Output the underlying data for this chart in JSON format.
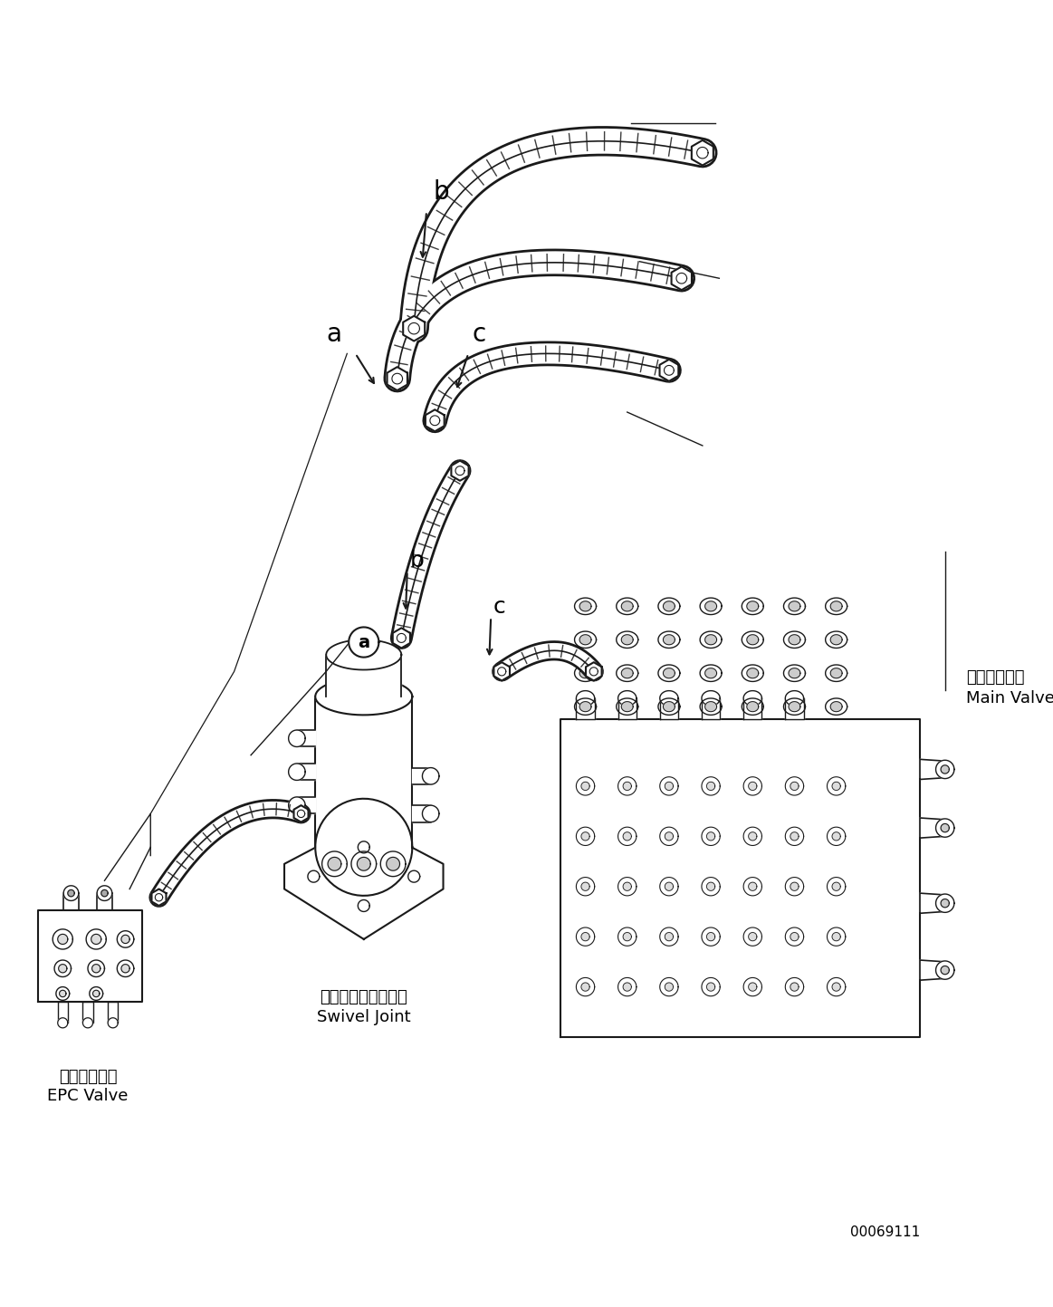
{
  "title": "",
  "background_color": "#ffffff",
  "line_color": "#1a1a1a",
  "text_color": "#000000",
  "labels": {
    "epc_valve_jp": "ＥＰＣバルブ",
    "epc_valve_en": "EPC Valve",
    "swivel_joint_jp": "スイベルジョイント",
    "swivel_joint_en": "Swivel Joint",
    "main_valve_jp": "メインバルブ",
    "main_valve_en": "Main Valve",
    "part_number": "00069111"
  },
  "figsize": [
    11.63,
    14.43
  ],
  "dpi": 100
}
